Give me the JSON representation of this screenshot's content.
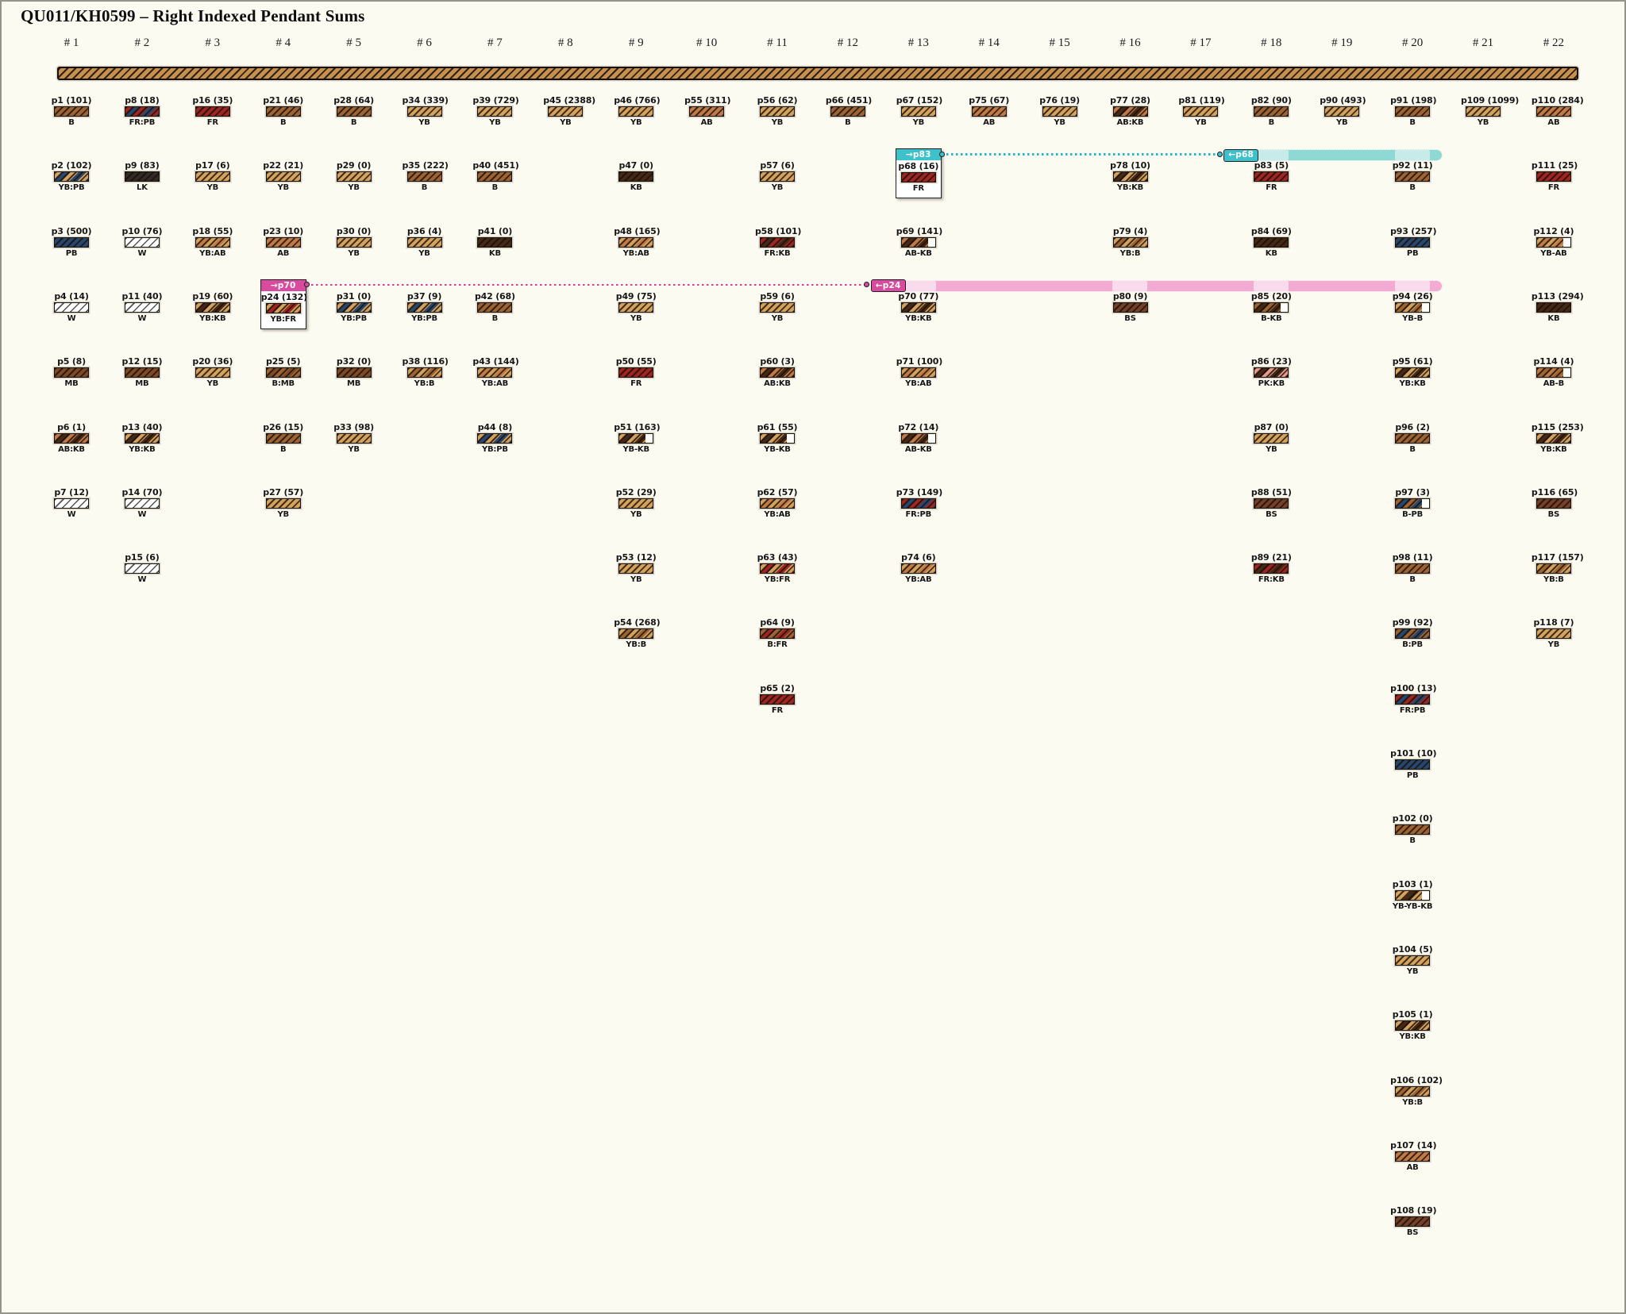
{
  "title": "QU011/KH0599 – Right Indexed Pendant Sums",
  "colors": {
    "B": "#9c6434",
    "YB": "#d2a25e",
    "AB": "#c07a48",
    "MB": "#7d4a28",
    "KB": "#452917",
    "PB": "#27476f",
    "LK": "#2e2b28",
    "W": "#ffffff",
    "FR": "#9e2622",
    "BS": "#75402a",
    "PK": "#e79a8e",
    "cord_fill": "#c6914f",
    "cord_stripe": "#30210f",
    "background": "#fcfbf1"
  },
  "accents": {
    "teal": {
      "tag": "#3ec1cb",
      "light": "#c7ebe8",
      "dark": "#8ed9d3",
      "line": "#2ab5c6"
    },
    "pink": {
      "tag": "#d84b9f",
      "light": "#f8dcee",
      "dark": "#f3abd4",
      "line": "#d63d98"
    }
  },
  "links": [
    {
      "source": "p68",
      "target": "p83",
      "accent": "teal",
      "source_tag": "→p83",
      "target_tag": "←p68",
      "row": 2,
      "source_col": 13,
      "target_col": 18,
      "band_cols": [
        18,
        20
      ],
      "band_end_col": 20
    },
    {
      "source": "p24",
      "target": "p70",
      "accent": "pink",
      "source_tag": "→p70",
      "target_tag": "←p24",
      "row": 4,
      "source_col": 4,
      "target_col": 13,
      "band_cols": [
        13,
        16,
        18,
        20
      ],
      "band_end_col": 20
    }
  ],
  "columns": [
    {
      "header": "# 1",
      "pendants": [
        {
          "id": "p1",
          "label": "p1 (101)",
          "code": "B"
        },
        {
          "id": "p2",
          "label": "p2 (102)",
          "code": "YB:PB"
        },
        {
          "id": "p3",
          "label": "p3 (500)",
          "code": "PB"
        },
        {
          "id": "p4",
          "label": "p4 (14)",
          "code": "W"
        },
        {
          "id": "p5",
          "label": "p5 (8)",
          "code": "MB"
        },
        {
          "id": "p6",
          "label": "p6 (1)",
          "code": "AB:KB"
        },
        {
          "id": "p7",
          "label": "p7 (12)",
          "code": "W"
        }
      ]
    },
    {
      "header": "# 2",
      "pendants": [
        {
          "id": "p8",
          "label": "p8 (18)",
          "code": "FR:PB"
        },
        {
          "id": "p9",
          "label": "p9 (83)",
          "code": "LK"
        },
        {
          "id": "p10",
          "label": "p10 (76)",
          "code": "W"
        },
        {
          "id": "p11",
          "label": "p11 (40)",
          "code": "W"
        },
        {
          "id": "p12",
          "label": "p12 (15)",
          "code": "MB"
        },
        {
          "id": "p13",
          "label": "p13 (40)",
          "code": "YB:KB"
        },
        {
          "id": "p14",
          "label": "p14 (70)",
          "code": "W"
        },
        {
          "id": "p15",
          "label": "p15 (6)",
          "code": "W"
        }
      ]
    },
    {
      "header": "# 3",
      "pendants": [
        {
          "id": "p16",
          "label": "p16 (35)",
          "code": "FR"
        },
        {
          "id": "p17",
          "label": "p17 (6)",
          "code": "YB"
        },
        {
          "id": "p18",
          "label": "p18 (55)",
          "code": "YB:AB"
        },
        {
          "id": "p19",
          "label": "p19 (60)",
          "code": "YB:KB"
        },
        {
          "id": "p20",
          "label": "p20 (36)",
          "code": "YB"
        }
      ]
    },
    {
      "header": "# 4",
      "pendants": [
        {
          "id": "p21",
          "label": "p21 (46)",
          "code": "B"
        },
        {
          "id": "p22",
          "label": "p22 (21)",
          "code": "YB"
        },
        {
          "id": "p23",
          "label": "p23 (10)",
          "code": "AB"
        },
        {
          "id": "p24",
          "label": "p24 (132)",
          "code": "YB:FR",
          "boxed": true,
          "link": "pink"
        },
        {
          "id": "p25",
          "label": "p25 (5)",
          "code": "B:MB"
        },
        {
          "id": "p26",
          "label": "p26 (15)",
          "code": "B"
        },
        {
          "id": "p27",
          "label": "p27 (57)",
          "code": "YB"
        }
      ]
    },
    {
      "header": "# 5",
      "pendants": [
        {
          "id": "p28",
          "label": "p28 (64)",
          "code": "B"
        },
        {
          "id": "p29",
          "label": "p29 (0)",
          "code": "YB"
        },
        {
          "id": "p30",
          "label": "p30 (0)",
          "code": "YB"
        },
        {
          "id": "p31",
          "label": "p31 (0)",
          "code": "YB:PB"
        },
        {
          "id": "p32",
          "label": "p32 (0)",
          "code": "MB"
        },
        {
          "id": "p33",
          "label": "p33 (98)",
          "code": "YB"
        }
      ]
    },
    {
      "header": "# 6",
      "pendants": [
        {
          "id": "p34",
          "label": "p34 (339)",
          "code": "YB"
        },
        {
          "id": "p35",
          "label": "p35 (222)",
          "code": "B"
        },
        {
          "id": "p36",
          "label": "p36 (4)",
          "code": "YB"
        },
        {
          "id": "p37",
          "label": "p37 (9)",
          "code": "YB:PB"
        },
        {
          "id": "p38",
          "label": "p38 (116)",
          "code": "YB:B"
        }
      ]
    },
    {
      "header": "# 7",
      "pendants": [
        {
          "id": "p39",
          "label": "p39 (729)",
          "code": "YB"
        },
        {
          "id": "p40",
          "label": "p40 (451)",
          "code": "B"
        },
        {
          "id": "p41",
          "label": "p41 (0)",
          "code": "KB"
        },
        {
          "id": "p42",
          "label": "p42 (68)",
          "code": "B"
        },
        {
          "id": "p43",
          "label": "p43 (144)",
          "code": "YB:AB"
        },
        {
          "id": "p44",
          "label": "p44 (8)",
          "code": "YB:PB"
        }
      ]
    },
    {
      "header": "# 8",
      "pendants": [
        {
          "id": "p45",
          "label": "p45 (2388)",
          "code": "YB"
        }
      ]
    },
    {
      "header": "# 9",
      "pendants": [
        {
          "id": "p46",
          "label": "p46 (766)",
          "code": "YB"
        },
        {
          "id": "p47",
          "label": "p47 (0)",
          "code": "KB"
        },
        {
          "id": "p48",
          "label": "p48 (165)",
          "code": "YB:AB"
        },
        {
          "id": "p49",
          "label": "p49 (75)",
          "code": "YB"
        },
        {
          "id": "p50",
          "label": "p50 (55)",
          "code": "FR"
        },
        {
          "id": "p51",
          "label": "p51 (163)",
          "code": "YB-KB"
        },
        {
          "id": "p52",
          "label": "p52 (29)",
          "code": "YB"
        },
        {
          "id": "p53",
          "label": "p53 (12)",
          "code": "YB"
        },
        {
          "id": "p54",
          "label": "p54 (268)",
          "code": "YB:B"
        }
      ]
    },
    {
      "header": "# 10",
      "pendants": [
        {
          "id": "p55",
          "label": "p55 (311)",
          "code": "AB"
        }
      ]
    },
    {
      "header": "# 11",
      "pendants": [
        {
          "id": "p56",
          "label": "p56 (62)",
          "code": "YB"
        },
        {
          "id": "p57",
          "label": "p57 (6)",
          "code": "YB"
        },
        {
          "id": "p58",
          "label": "p58 (101)",
          "code": "FR:KB"
        },
        {
          "id": "p59",
          "label": "p59 (6)",
          "code": "YB"
        },
        {
          "id": "p60",
          "label": "p60 (3)",
          "code": "AB:KB"
        },
        {
          "id": "p61",
          "label": "p61 (55)",
          "code": "YB-KB"
        },
        {
          "id": "p62",
          "label": "p62 (57)",
          "code": "YB:AB"
        },
        {
          "id": "p63",
          "label": "p63 (43)",
          "code": "YB:FR"
        },
        {
          "id": "p64",
          "label": "p64 (9)",
          "code": "B:FR"
        },
        {
          "id": "p65",
          "label": "p65 (2)",
          "code": "FR"
        }
      ]
    },
    {
      "header": "# 12",
      "pendants": [
        {
          "id": "p66",
          "label": "p66 (451)",
          "code": "B"
        }
      ]
    },
    {
      "header": "# 13",
      "pendants": [
        {
          "id": "p67",
          "label": "p67 (152)",
          "code": "YB"
        },
        {
          "id": "p68",
          "label": "p68 (16)",
          "code": "FR",
          "boxed": true,
          "link": "teal"
        },
        {
          "id": "p69",
          "label": "p69 (141)",
          "code": "AB-KB"
        },
        {
          "id": "p70",
          "label": "p70 (77)",
          "code": "YB:KB",
          "band_target": "pink"
        },
        {
          "id": "p71",
          "label": "p71 (100)",
          "code": "YB:AB"
        },
        {
          "id": "p72",
          "label": "p72 (14)",
          "code": "AB-KB"
        },
        {
          "id": "p73",
          "label": "p73 (149)",
          "code": "FR:PB"
        },
        {
          "id": "p74",
          "label": "p74 (6)",
          "code": "YB:AB"
        }
      ]
    },
    {
      "header": "# 14",
      "pendants": [
        {
          "id": "p75",
          "label": "p75 (67)",
          "code": "AB"
        }
      ]
    },
    {
      "header": "# 15",
      "pendants": [
        {
          "id": "p76",
          "label": "p76 (19)",
          "code": "YB"
        }
      ]
    },
    {
      "header": "# 16",
      "pendants": [
        {
          "id": "p77",
          "label": "p77 (28)",
          "code": "AB:KB"
        },
        {
          "id": "p78",
          "label": "p78 (10)",
          "code": "YB:KB"
        },
        {
          "id": "p79",
          "label": "p79 (4)",
          "code": "YB:B"
        },
        {
          "id": "p80",
          "label": "p80 (9)",
          "code": "BS"
        }
      ]
    },
    {
      "header": "# 17",
      "pendants": [
        {
          "id": "p81",
          "label": "p81 (119)",
          "code": "YB"
        }
      ]
    },
    {
      "header": "# 18",
      "pendants": [
        {
          "id": "p82",
          "label": "p82 (90)",
          "code": "B"
        },
        {
          "id": "p83",
          "label": "p83 (5)",
          "code": "FR",
          "band_target": "teal"
        },
        {
          "id": "p84",
          "label": "p84 (69)",
          "code": "KB"
        },
        {
          "id": "p85",
          "label": "p85 (20)",
          "code": "B-KB"
        },
        {
          "id": "p86",
          "label": "p86 (23)",
          "code": "PK:KB"
        },
        {
          "id": "p87",
          "label": "p87 (0)",
          "code": "YB"
        },
        {
          "id": "p88",
          "label": "p88 (51)",
          "code": "BS"
        },
        {
          "id": "p89",
          "label": "p89 (21)",
          "code": "FR:KB"
        }
      ]
    },
    {
      "header": "# 19",
      "pendants": [
        {
          "id": "p90",
          "label": "p90 (493)",
          "code": "YB"
        }
      ]
    },
    {
      "header": "# 20",
      "pendants": [
        {
          "id": "p91",
          "label": "p91 (198)",
          "code": "B"
        },
        {
          "id": "p92",
          "label": "p92 (11)",
          "code": "B"
        },
        {
          "id": "p93",
          "label": "p93 (257)",
          "code": "PB"
        },
        {
          "id": "p94",
          "label": "p94 (26)",
          "code": "YB-B"
        },
        {
          "id": "p95",
          "label": "p95 (61)",
          "code": "YB:KB"
        },
        {
          "id": "p96",
          "label": "p96 (2)",
          "code": "B"
        },
        {
          "id": "p97",
          "label": "p97 (3)",
          "code": "B-PB"
        },
        {
          "id": "p98",
          "label": "p98 (11)",
          "code": "B"
        },
        {
          "id": "p99",
          "label": "p99 (92)",
          "code": "B:PB"
        },
        {
          "id": "p100",
          "label": "p100 (13)",
          "code": "FR:PB"
        },
        {
          "id": "p101",
          "label": "p101 (10)",
          "code": "PB"
        },
        {
          "id": "p102",
          "label": "p102 (0)",
          "code": "B"
        },
        {
          "id": "p103",
          "label": "p103 (1)",
          "code": "YB-YB-KB"
        },
        {
          "id": "p104",
          "label": "p104 (5)",
          "code": "YB"
        },
        {
          "id": "p105",
          "label": "p105 (1)",
          "code": "YB:KB"
        },
        {
          "id": "p106",
          "label": "p106 (102)",
          "code": "YB:B"
        },
        {
          "id": "p107",
          "label": "p107 (14)",
          "code": "AB"
        },
        {
          "id": "p108",
          "label": "p108 (19)",
          "code": "BS"
        }
      ]
    },
    {
      "header": "# 21",
      "pendants": [
        {
          "id": "p109",
          "label": "p109 (1099)",
          "code": "YB"
        }
      ]
    },
    {
      "header": "# 22",
      "pendants": [
        {
          "id": "p110",
          "label": "p110 (284)",
          "code": "AB"
        },
        {
          "id": "p111",
          "label": "p111 (25)",
          "code": "FR"
        },
        {
          "id": "p112",
          "label": "p112 (4)",
          "code": "YB-AB"
        },
        {
          "id": "p113",
          "label": "p113 (294)",
          "code": "KB"
        },
        {
          "id": "p114",
          "label": "p114 (4)",
          "code": "AB-B"
        },
        {
          "id": "p115",
          "label": "p115 (253)",
          "code": "YB:KB"
        },
        {
          "id": "p116",
          "label": "p116 (65)",
          "code": "BS"
        },
        {
          "id": "p117",
          "label": "p117 (157)",
          "code": "YB:B"
        },
        {
          "id": "p118",
          "label": "p118 (7)",
          "code": "YB"
        }
      ]
    }
  ]
}
